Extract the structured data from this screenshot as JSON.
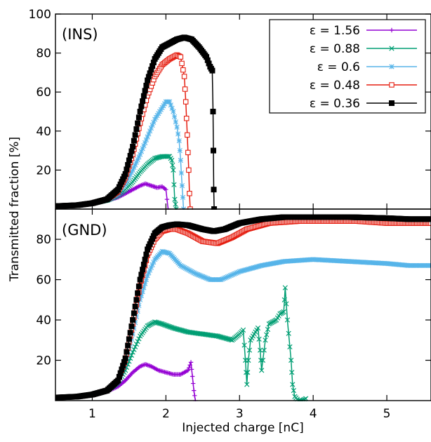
{
  "chart_data": {
    "type": "line",
    "shared_x_axis": {
      "label": "Injected charge   [nC]",
      "range": [
        0.5,
        5.6
      ],
      "ticks": [
        1,
        2,
        3,
        4,
        5
      ]
    },
    "y_axis_label": "Transmitted fraction  [%]",
    "legend": {
      "placement": "top-right",
      "entries": [
        {
          "label": "ε = 1.56",
          "color": "#9400d3",
          "marker": "plus"
        },
        {
          "label": "ε = 0.88",
          "color": "#009e73",
          "marker": "cross"
        },
        {
          "label": "ε = 0.6",
          "color": "#56b4e9",
          "marker": "star"
        },
        {
          "label": "ε = 0.48",
          "color": "#e51e10",
          "marker": "open-square"
        },
        {
          "label": "ε = 0.36",
          "color": "#000000",
          "marker": "filled-square"
        }
      ]
    },
    "panels": [
      {
        "label": "(INS)",
        "ylim": [
          0,
          100
        ],
        "yticks": [
          20,
          40,
          60,
          80,
          100
        ],
        "series": [
          {
            "name": "ε = 1.56",
            "points": [
              [
                0.5,
                1.5
              ],
              [
                0.8,
                2
              ],
              [
                1.0,
                3
              ],
              [
                1.2,
                4.5
              ],
              [
                1.35,
                6
              ],
              [
                1.45,
                8
              ],
              [
                1.55,
                10
              ],
              [
                1.65,
                12
              ],
              [
                1.72,
                13
              ],
              [
                1.8,
                12
              ],
              [
                1.88,
                11
              ],
              [
                1.95,
                11.5
              ],
              [
                2.0,
                10
              ],
              [
                2.03,
                0
              ]
            ]
          },
          {
            "name": "ε = 0.88",
            "points": [
              [
                0.5,
                1.5
              ],
              [
                0.8,
                2
              ],
              [
                1.0,
                3
              ],
              [
                1.2,
                4.5
              ],
              [
                1.35,
                7
              ],
              [
                1.45,
                10
              ],
              [
                1.55,
                14
              ],
              [
                1.65,
                19
              ],
              [
                1.75,
                23
              ],
              [
                1.85,
                26
              ],
              [
                1.95,
                27
              ],
              [
                2.05,
                27
              ],
              [
                2.08,
                25
              ],
              [
                2.1,
                20
              ],
              [
                2.12,
                5
              ],
              [
                2.14,
                0
              ]
            ]
          },
          {
            "name": "ε = 0.6",
            "points": [
              [
                0.5,
                1.5
              ],
              [
                0.8,
                2
              ],
              [
                1.0,
                3
              ],
              [
                1.2,
                5
              ],
              [
                1.35,
                8
              ],
              [
                1.45,
                13
              ],
              [
                1.55,
                20
              ],
              [
                1.65,
                28
              ],
              [
                1.75,
                37
              ],
              [
                1.85,
                46
              ],
              [
                1.95,
                52
              ],
              [
                2.0,
                55
              ],
              [
                2.05,
                55
              ],
              [
                2.1,
                50
              ],
              [
                2.15,
                42
              ],
              [
                2.18,
                35
              ],
              [
                2.2,
                25
              ],
              [
                2.22,
                12
              ],
              [
                2.24,
                0
              ]
            ]
          },
          {
            "name": "ε = 0.48",
            "points": [
              [
                0.5,
                1.5
              ],
              [
                0.8,
                2
              ],
              [
                1.0,
                3
              ],
              [
                1.2,
                5
              ],
              [
                1.35,
                9
              ],
              [
                1.45,
                16
              ],
              [
                1.55,
                28
              ],
              [
                1.65,
                44
              ],
              [
                1.75,
                58
              ],
              [
                1.85,
                68
              ],
              [
                1.95,
                74
              ],
              [
                2.05,
                77
              ],
              [
                2.15,
                79
              ],
              [
                2.2,
                78
              ],
              [
                2.25,
                68
              ],
              [
                2.27,
                55
              ],
              [
                2.29,
                38
              ],
              [
                2.31,
                20
              ],
              [
                2.32,
                8
              ],
              [
                2.33,
                0
              ]
            ]
          },
          {
            "name": "ε = 0.36",
            "points": [
              [
                0.5,
                1.5
              ],
              [
                0.8,
                2
              ],
              [
                1.0,
                3
              ],
              [
                1.2,
                5
              ],
              [
                1.35,
                10
              ],
              [
                1.45,
                18
              ],
              [
                1.55,
                32
              ],
              [
                1.65,
                50
              ],
              [
                1.75,
                66
              ],
              [
                1.85,
                77
              ],
              [
                1.95,
                83
              ],
              [
                2.05,
                85
              ],
              [
                2.15,
                87
              ],
              [
                2.25,
                88
              ],
              [
                2.35,
                87
              ],
              [
                2.45,
                83
              ],
              [
                2.55,
                78
              ],
              [
                2.6,
                73
              ],
              [
                2.63,
                71
              ],
              [
                2.64,
                50
              ],
              [
                2.645,
                30
              ],
              [
                2.65,
                10
              ],
              [
                2.655,
                0
              ]
            ]
          }
        ]
      },
      {
        "label": "(GND)",
        "ylim": [
          0,
          95
        ],
        "yticks": [
          20,
          40,
          60,
          80
        ],
        "series": [
          {
            "name": "ε = 1.56",
            "points": [
              [
                0.5,
                1.5
              ],
              [
                0.8,
                2
              ],
              [
                1.0,
                3
              ],
              [
                1.2,
                4.5
              ],
              [
                1.35,
                7
              ],
              [
                1.45,
                10
              ],
              [
                1.55,
                14
              ],
              [
                1.65,
                17
              ],
              [
                1.72,
                18
              ],
              [
                1.8,
                17
              ],
              [
                1.9,
                15
              ],
              [
                2.0,
                14
              ],
              [
                2.1,
                13
              ],
              [
                2.2,
                13
              ],
              [
                2.3,
                15
              ],
              [
                2.34,
                19
              ],
              [
                2.36,
                12
              ],
              [
                2.38,
                5
              ],
              [
                2.4,
                0
              ]
            ]
          },
          {
            "name": "ε = 0.88",
            "points": [
              [
                0.5,
                1.5
              ],
              [
                0.8,
                2
              ],
              [
                1.0,
                3
              ],
              [
                1.2,
                5
              ],
              [
                1.35,
                9
              ],
              [
                1.45,
                15
              ],
              [
                1.55,
                24
              ],
              [
                1.65,
                32
              ],
              [
                1.75,
                37
              ],
              [
                1.85,
                39
              ],
              [
                1.95,
                38
              ],
              [
                2.1,
                36
              ],
              [
                2.3,
                34
              ],
              [
                2.5,
                33
              ],
              [
                2.7,
                32
              ],
              [
                2.9,
                30
              ],
              [
                3.0,
                33
              ],
              [
                3.05,
                35
              ],
              [
                3.08,
                20
              ],
              [
                3.1,
                8
              ],
              [
                3.12,
                20
              ],
              [
                3.15,
                30
              ],
              [
                3.2,
                33
              ],
              [
                3.25,
                36
              ],
              [
                3.28,
                25
              ],
              [
                3.3,
                15
              ],
              [
                3.35,
                30
              ],
              [
                3.4,
                38
              ],
              [
                3.5,
                40
              ],
              [
                3.55,
                43
              ],
              [
                3.6,
                44
              ],
              [
                3.62,
                56
              ],
              [
                3.65,
                40
              ],
              [
                3.7,
                20
              ],
              [
                3.72,
                8
              ],
              [
                3.75,
                2
              ],
              [
                3.8,
                0
              ],
              [
                3.85,
                0
              ],
              [
                3.9,
                1
              ]
            ]
          },
          {
            "name": "ε = 0.6",
            "points": [
              [
                0.5,
                1.5
              ],
              [
                0.8,
                2
              ],
              [
                1.0,
                3
              ],
              [
                1.2,
                5
              ],
              [
                1.35,
                10
              ],
              [
                1.45,
                18
              ],
              [
                1.55,
                33
              ],
              [
                1.65,
                50
              ],
              [
                1.75,
                62
              ],
              [
                1.85,
                70
              ],
              [
                1.95,
                74
              ],
              [
                2.05,
                73
              ],
              [
                2.2,
                67
              ],
              [
                2.4,
                63
              ],
              [
                2.6,
                60
              ],
              [
                2.75,
                60
              ],
              [
                3.0,
                64
              ],
              [
                3.3,
                67
              ],
              [
                3.6,
                69
              ],
              [
                4.0,
                70
              ],
              [
                4.5,
                69
              ],
              [
                5.0,
                68
              ],
              [
                5.3,
                67
              ],
              [
                5.6,
                67
              ]
            ]
          },
          {
            "name": "ε = 0.48",
            "points": [
              [
                0.5,
                1.5
              ],
              [
                0.8,
                2
              ],
              [
                1.0,
                3
              ],
              [
                1.2,
                5
              ],
              [
                1.35,
                10
              ],
              [
                1.45,
                20
              ],
              [
                1.55,
                38
              ],
              [
                1.65,
                57
              ],
              [
                1.75,
                72
              ],
              [
                1.85,
                80
              ],
              [
                1.95,
                84
              ],
              [
                2.05,
                85
              ],
              [
                2.15,
                85
              ],
              [
                2.3,
                83
              ],
              [
                2.5,
                79
              ],
              [
                2.7,
                78
              ],
              [
                2.9,
                81
              ],
              [
                3.1,
                85
              ],
              [
                3.4,
                88
              ],
              [
                3.8,
                89
              ],
              [
                4.2,
                89
              ],
              [
                4.6,
                89
              ],
              [
                5.0,
                88
              ],
              [
                5.3,
                88
              ],
              [
                5.6,
                88
              ]
            ]
          },
          {
            "name": "ε = 0.36",
            "points": [
              [
                0.5,
                1.5
              ],
              [
                0.8,
                2
              ],
              [
                1.0,
                3
              ],
              [
                1.2,
                5
              ],
              [
                1.35,
                10
              ],
              [
                1.45,
                21
              ],
              [
                1.55,
                40
              ],
              [
                1.65,
                60
              ],
              [
                1.75,
                75
              ],
              [
                1.85,
                83
              ],
              [
                1.95,
                86
              ],
              [
                2.05,
                87
              ],
              [
                2.15,
                87.5
              ],
              [
                2.3,
                87
              ],
              [
                2.5,
                85
              ],
              [
                2.65,
                84
              ],
              [
                2.8,
                85
              ],
              [
                3.0,
                88
              ],
              [
                3.3,
                90
              ],
              [
                3.6,
                91
              ],
              [
                4.0,
                91
              ],
              [
                4.5,
                91
              ],
              [
                5.0,
                90.5
              ],
              [
                5.3,
                90
              ],
              [
                5.6,
                90
              ]
            ]
          }
        ]
      }
    ]
  }
}
